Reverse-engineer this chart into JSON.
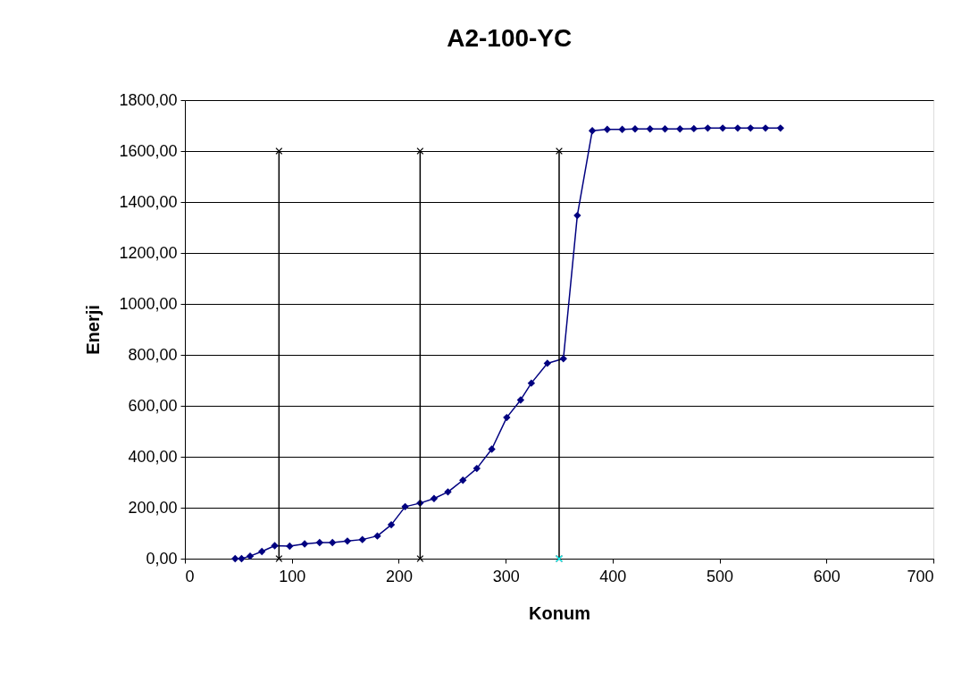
{
  "chart_data": {
    "type": "line",
    "title": "A2-100-YC",
    "xlabel": "Konum",
    "ylabel": "Enerji",
    "xlim": [
      0,
      700
    ],
    "xticks": [
      0,
      100,
      200,
      300,
      400,
      500,
      600,
      700
    ],
    "ylim": [
      0,
      1800
    ],
    "yticks": [
      {
        "value": 0,
        "label": "0,00"
      },
      {
        "value": 200,
        "label": "200,00"
      },
      {
        "value": 400,
        "label": "400,00"
      },
      {
        "value": 600,
        "label": "600,00"
      },
      {
        "value": 800,
        "label": "800,00"
      },
      {
        "value": 1000,
        "label": "1000,00"
      },
      {
        "value": 1200,
        "label": "1200,00"
      },
      {
        "value": 1400,
        "label": "1400,00"
      },
      {
        "value": 1600,
        "label": "1600,00"
      },
      {
        "value": 1800,
        "label": "1800,00"
      }
    ],
    "grid": "y",
    "series": [
      {
        "color": "#000080",
        "marker": "diamond",
        "x": [
          47,
          53,
          61,
          72,
          84,
          98,
          112,
          126,
          138,
          152,
          166,
          180,
          193,
          206,
          220,
          233,
          246,
          260,
          273,
          287,
          301,
          314,
          324,
          339,
          354,
          367,
          381,
          395,
          409,
          421,
          435,
          449,
          463,
          476,
          489,
          503,
          517,
          529,
          543,
          557
        ],
        "values": [
          0,
          0,
          10,
          28,
          51,
          49,
          58,
          63,
          63,
          69,
          75,
          89,
          133,
          204,
          218,
          236,
          262,
          308,
          354,
          430,
          554,
          623,
          689,
          767,
          785,
          1347,
          1680,
          1685,
          1685,
          1687,
          1687,
          1687,
          1687,
          1688,
          1690,
          1690,
          1690,
          1690,
          1690,
          1690
        ]
      },
      {
        "color": "#000000",
        "marker": "cross",
        "x": [
          88,
          88
        ],
        "values": [
          0,
          1600
        ]
      },
      {
        "color": "#000000",
        "marker": "cross",
        "x": [
          220,
          220
        ],
        "values": [
          0,
          1600
        ]
      },
      {
        "color": "#000000",
        "marker": "cross",
        "x": [
          350,
          350
        ],
        "values": [
          0,
          1600
        ]
      },
      {
        "type": "scatter",
        "color": "#00ffff",
        "marker": "cross",
        "x": [
          350
        ],
        "values": [
          0
        ]
      }
    ]
  }
}
